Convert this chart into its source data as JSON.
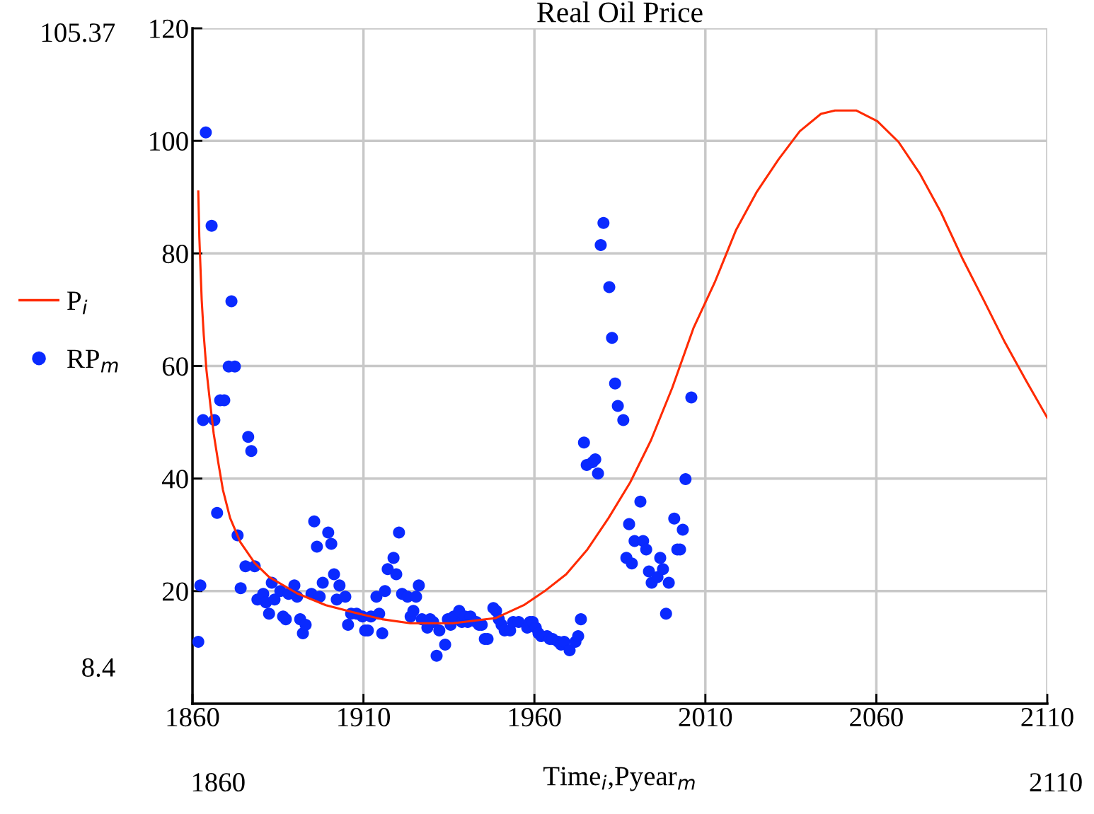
{
  "chart_data": {
    "type": "scatter",
    "title": "Real Oil Price",
    "xlabel": "Time$_{i}$,Pyear$_{m}$",
    "xlim": [
      1860,
      2110
    ],
    "xticks": [
      1860,
      1910,
      1960,
      2010,
      2060,
      2110
    ],
    "ylim": [
      0,
      120
    ],
    "yticks": [
      20,
      40,
      60,
      80,
      100,
      120
    ],
    "grid": true,
    "legend": "left",
    "annotations": [
      "105.37",
      "8.4",
      "1860",
      "2110"
    ],
    "series": [
      {
        "name": "P$_{i}$",
        "type": "line",
        "color": "#ff2a00",
        "x": [
          1861.7,
          1862,
          1862.7,
          1863.3,
          1864.1,
          1865,
          1866.2,
          1867.5,
          1868.9,
          1871,
          1874,
          1878.2,
          1882.4,
          1890.6,
          1899,
          1907.2,
          1915.5,
          1923.7,
          1936.2,
          1948.6,
          1956.9,
          1963,
          1969.3,
          1975.5,
          1981.7,
          1988,
          1994.1,
          2000.3,
          2006.5,
          2012.7,
          2019,
          2025.1,
          2031.4,
          2037.6,
          2043.8,
          2047.9,
          2054.1,
          2060.3,
          2066.5,
          2072.7,
          2078.9,
          2085.1,
          2091.4,
          2097.6,
          2103.8,
          2110
        ],
        "values": [
          91,
          83,
          71.7,
          65.5,
          59.2,
          54.3,
          48,
          43,
          38,
          33,
          28.7,
          25,
          22.5,
          19.6,
          17.5,
          16.2,
          15,
          14.3,
          14.3,
          15.2,
          17.5,
          20,
          23,
          27.4,
          33,
          39.3,
          46.8,
          56.1,
          66.7,
          74.8,
          84.2,
          91,
          96.7,
          101.7,
          104.8,
          105.4,
          105.4,
          103.5,
          99.8,
          94.2,
          87.3,
          79.2,
          71.7,
          64.2,
          57.4,
          50.8
        ]
      },
      {
        "name": "RP$_{m}$",
        "color": "#0a2aff",
        "marker": "circle",
        "x": [
          1861.7,
          1862.3,
          1863.1,
          1863.9,
          1865.6,
          1866.4,
          1867.2,
          1868.1,
          1869.3,
          1870.6,
          1871.4,
          1872.4,
          1873.2,
          1874.1,
          1875.5,
          1876.3,
          1877.2,
          1878.2,
          1879.0,
          1880.7,
          1881.5,
          1882.4,
          1883.2,
          1884.0,
          1885.7,
          1886.5,
          1887.3,
          1888.1,
          1889.8,
          1890.6,
          1891.5,
          1892.3,
          1893.1,
          1894.8,
          1895.6,
          1896.4,
          1897.2,
          1898.1,
          1899.7,
          1900.6,
          1901.4,
          1902.2,
          1903.0,
          1904.7,
          1905.5,
          1906.4,
          1908.0,
          1909.7,
          1910.5,
          1911.3,
          1912.2,
          1913.8,
          1914.6,
          1915.5,
          1916.3,
          1917.1,
          1918.8,
          1919.6,
          1920.4,
          1921.3,
          1922.9,
          1923.8,
          1924.6,
          1925.4,
          1926.2,
          1927.1,
          1928.7,
          1929.5,
          1930.4,
          1931.4,
          1932.2,
          1933.9,
          1934.7,
          1935.5,
          1936.4,
          1938.0,
          1938.8,
          1939.7,
          1940.5,
          1941.3,
          1943.0,
          1943.8,
          1944.6,
          1945.5,
          1946.3,
          1948.0,
          1948.8,
          1949.6,
          1950.4,
          1951.3,
          1952.9,
          1953.8,
          1955.4,
          1957.9,
          1958.7,
          1959.5,
          1960.4,
          1961.2,
          1962.0,
          1963.7,
          1964.5,
          1965.3,
          1967.0,
          1967.8,
          1968.7,
          1970.3,
          1972.0,
          1972.8,
          1973.6,
          1974.5,
          1975.3,
          1977.0,
          1977.8,
          1978.6,
          1979.4,
          1980.2,
          1981.9,
          1982.7,
          1983.6,
          1984.4,
          1986.0,
          1986.9,
          1987.7,
          1988.5,
          1989.3,
          1991.0,
          1991.8,
          1992.7,
          1993.5,
          1994.3,
          1996.0,
          1996.8,
          1997.6,
          1998.5,
          1999.3,
          2000.9,
          2001.8,
          2002.6,
          2003.4,
          2004.2,
          2005.9
        ],
        "values": [
          11.0,
          21.0,
          50.4,
          101.5,
          84.9,
          50.4,
          33.9,
          53.9,
          53.9,
          59.9,
          71.5,
          59.9,
          29.9,
          20.5,
          24.4,
          47.4,
          44.9,
          24.4,
          18.5,
          19.5,
          18.0,
          16.0,
          21.5,
          18.5,
          20.0,
          15.5,
          15.0,
          19.5,
          21.0,
          19.0,
          15.0,
          12.5,
          14.0,
          19.5,
          32.4,
          27.9,
          19.0,
          21.5,
          30.4,
          28.4,
          23.0,
          18.5,
          21.0,
          19.0,
          14.0,
          16.0,
          16.0,
          15.5,
          13.0,
          13.0,
          15.5,
          19.0,
          16.0,
          12.5,
          20.0,
          23.9,
          25.9,
          23.0,
          30.4,
          19.5,
          19.0,
          15.5,
          16.5,
          19.0,
          21.0,
          15.0,
          13.5,
          15.0,
          14.5,
          8.5,
          13.0,
          10.5,
          15.0,
          14.0,
          15.5,
          16.5,
          14.5,
          15.5,
          14.5,
          15.5,
          14.5,
          14.0,
          14.0,
          11.5,
          11.5,
          17.0,
          16.5,
          15.0,
          14.0,
          13.0,
          13.0,
          14.5,
          14.5,
          13.5,
          14.5,
          14.5,
          13.5,
          12.5,
          12.0,
          12.0,
          11.5,
          11.5,
          11.0,
          10.5,
          11.0,
          9.5,
          11.0,
          12.0,
          15.0,
          46.4,
          42.4,
          42.9,
          43.4,
          40.9,
          81.5,
          85.4,
          74.0,
          65.0,
          56.9,
          52.9,
          50.4,
          25.9,
          31.9,
          24.9,
          28.9,
          35.9,
          28.9,
          27.4,
          23.5,
          21.5,
          22.5,
          25.9,
          23.9,
          16.0,
          21.5,
          32.9,
          27.4,
          27.4,
          30.9,
          39.9,
          54.4
        ]
      }
    ]
  }
}
